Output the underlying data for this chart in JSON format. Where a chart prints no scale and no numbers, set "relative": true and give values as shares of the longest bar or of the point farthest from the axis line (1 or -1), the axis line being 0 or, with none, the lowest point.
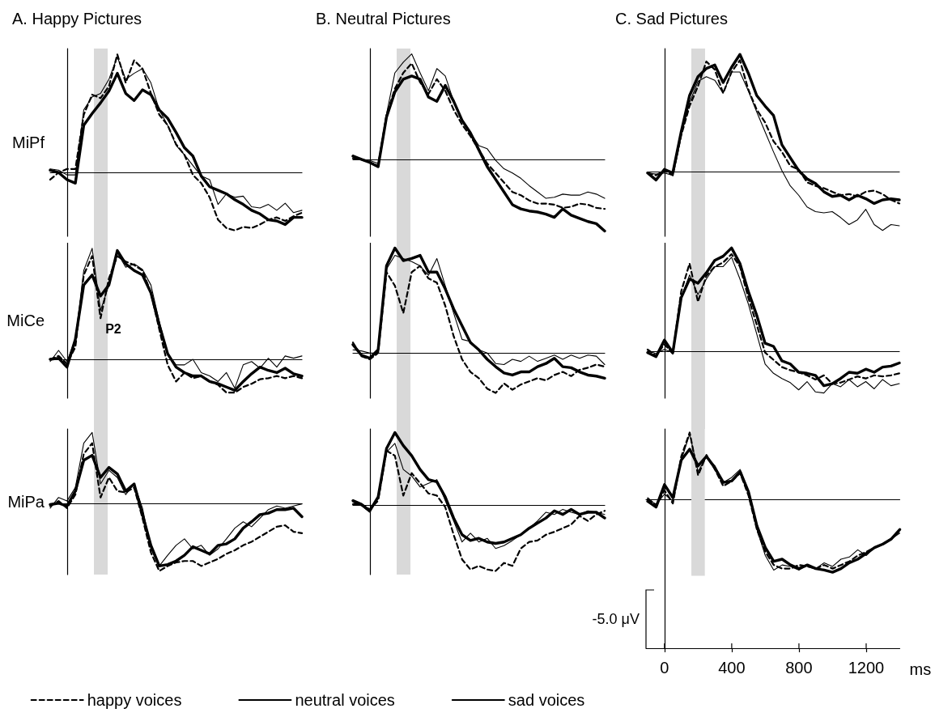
{
  "chart_data": [
    {
      "type": "line",
      "title": "A. Happy Pictures",
      "ylabel": "MiPf",
      "relative": true,
      "categories": [
        null,
        null,
        null,
        null,
        null,
        null,
        null,
        null,
        null,
        null,
        null,
        null,
        null,
        null,
        null,
        null,
        null,
        null,
        null,
        null,
        null,
        null,
        null,
        null,
        null,
        null,
        null,
        null,
        null,
        null,
        null
      ],
      "series": [
        {
          "color": "#000000",
          "line_style": "dashed",
          "values": [
            -0.06,
            0,
            0.03,
            0.03,
            0.49,
            0.66,
            0.63,
            0.73,
            1.0,
            0.76,
            0.95,
            0.88,
            0.67,
            0.49,
            0.4,
            0.24,
            0.15,
            -0.02,
            -0.09,
            -0.21,
            -0.4,
            -0.47,
            -0.49,
            -0.46,
            -0.47,
            -0.44,
            -0.4,
            -0.38,
            -0.41,
            -0.37,
            -0.34
          ]
        },
        {
          "color": "#000000",
          "line_style": "solid",
          "values": [
            0.03,
            0.02,
            -0.02,
            -0.02,
            0.53,
            0.64,
            0.67,
            0.79,
            0.98,
            0.79,
            0.84,
            0.88,
            0.76,
            0.53,
            0.4,
            0.23,
            0.15,
            0.06,
            -0.03,
            -0.06,
            -0.27,
            -0.18,
            -0.21,
            -0.2,
            -0.29,
            -0.3,
            -0.27,
            -0.32,
            -0.26,
            -0.34,
            -0.32
          ]
        },
        {
          "color": "#000000",
          "line_style": "solid",
          "values": [
            0.02,
            0,
            -0.06,
            -0.09,
            0.4,
            0.5,
            0.59,
            0.69,
            0.84,
            0.67,
            0.61,
            0.7,
            0.66,
            0.53,
            0.46,
            0.34,
            0.21,
            0.14,
            -0.03,
            -0.12,
            -0.15,
            -0.18,
            -0.23,
            -0.27,
            -0.32,
            -0.35,
            -0.4,
            -0.41,
            -0.44,
            -0.38,
            -0.38
          ]
        }
      ]
    },
    {
      "type": "line",
      "title": "B. Neutral Pictures",
      "relative": true,
      "categories": [
        null,
        null,
        null,
        null,
        null,
        null,
        null,
        null,
        null,
        null,
        null,
        null,
        null,
        null,
        null,
        null,
        null,
        null,
        null,
        null,
        null,
        null,
        null,
        null,
        null,
        null,
        null,
        null,
        null,
        null,
        null
      ],
      "series": [
        {
          "color": "#000000",
          "line_style": "dashed",
          "values": [
            0.01,
            0,
            -0.03,
            -0.06,
            0.42,
            0.67,
            0.82,
            0.91,
            0.73,
            0.62,
            0.76,
            0.65,
            0.47,
            0.33,
            0.22,
            0.09,
            -0.04,
            -0.13,
            -0.22,
            -0.31,
            -0.34,
            -0.39,
            -0.42,
            -0.42,
            -0.43,
            -0.46,
            -0.45,
            -0.42,
            -0.43,
            -0.46,
            -0.47
          ]
        },
        {
          "color": "#000000",
          "line_style": "solid",
          "values": [
            0.04,
            0,
            -0.01,
            -0.04,
            0.43,
            0.82,
            0.92,
            1.0,
            0.82,
            0.65,
            0.86,
            0.79,
            0.55,
            0.37,
            0.25,
            0.13,
            0.1,
            -0.01,
            -0.09,
            -0.13,
            -0.18,
            -0.25,
            -0.31,
            -0.37,
            -0.36,
            -0.33,
            -0.34,
            -0.34,
            -0.31,
            -0.33,
            -0.37
          ]
        },
        {
          "color": "#000000",
          "line_style": "solid",
          "values": [
            0.03,
            0,
            -0.03,
            -0.07,
            0.4,
            0.64,
            0.76,
            0.79,
            0.76,
            0.59,
            0.55,
            0.7,
            0.55,
            0.37,
            0.25,
            0.09,
            -0.07,
            -0.19,
            -0.31,
            -0.43,
            -0.47,
            -0.49,
            -0.5,
            -0.52,
            -0.55,
            -0.47,
            -0.53,
            -0.56,
            -0.59,
            -0.61,
            -0.68
          ]
        }
      ]
    },
    {
      "type": "line",
      "title": "C. Sad Pictures",
      "relative": true,
      "categories": [
        null,
        null,
        null,
        null,
        null,
        null,
        null,
        null,
        null,
        null,
        null,
        null,
        null,
        null,
        null,
        null,
        null,
        null,
        null,
        null,
        null,
        null,
        null,
        null,
        null,
        null,
        null,
        null,
        null,
        null,
        null
      ],
      "series": [
        {
          "color": "#000000",
          "line_style": "dashed",
          "values": [
            -0.01,
            -0.03,
            0.01,
            -0.03,
            0.31,
            0.56,
            0.73,
            0.94,
            0.87,
            0.67,
            0.85,
            0.95,
            0.7,
            0.53,
            0.42,
            0.26,
            0.17,
            0.05,
            0.02,
            -0.09,
            -0.12,
            -0.14,
            -0.17,
            -0.2,
            -0.19,
            -0.21,
            -0.17,
            -0.16,
            -0.19,
            -0.24,
            -0.27
          ]
        },
        {
          "color": "#000000",
          "line_style": "solid",
          "values": [
            -0.01,
            -0.02,
            -0.01,
            -0.03,
            0.31,
            0.59,
            0.77,
            0.81,
            0.78,
            0.67,
            0.85,
            0.85,
            0.69,
            0.51,
            0.34,
            0.17,
            0.01,
            -0.12,
            -0.2,
            -0.3,
            -0.34,
            -0.35,
            -0.34,
            -0.39,
            -0.45,
            -0.41,
            -0.32,
            -0.45,
            -0.5,
            -0.45,
            -0.46
          ]
        },
        {
          "color": "#000000",
          "line_style": "solid",
          "values": [
            -0.01,
            -0.07,
            0.02,
            -0.01,
            0.34,
            0.65,
            0.81,
            0.88,
            0.91,
            0.76,
            0.89,
            1.0,
            0.84,
            0.65,
            0.56,
            0.48,
            0.23,
            0.12,
            0.01,
            -0.06,
            -0.1,
            -0.17,
            -0.21,
            -0.2,
            -0.24,
            -0.2,
            -0.23,
            -0.27,
            -0.24,
            -0.23,
            -0.24
          ]
        }
      ]
    },
    {
      "type": "line",
      "ylabel": "MiCe",
      "relative": true,
      "categories": [
        null,
        null,
        null,
        null,
        null,
        null,
        null,
        null,
        null,
        null,
        null,
        null,
        null,
        null,
        null,
        null,
        null,
        null,
        null,
        null,
        null,
        null,
        null,
        null,
        null,
        null,
        null,
        null,
        null,
        null,
        null
      ],
      "annotations": [
        "P2"
      ],
      "series": [
        {
          "color": "#000000",
          "line_style": "dashed",
          "values": [
            0,
            0.03,
            -0.04,
            0.11,
            0.76,
            0.93,
            0.37,
            0.73,
            0.93,
            0.88,
            0.85,
            0.8,
            0.6,
            0.27,
            -0.05,
            -0.2,
            -0.12,
            -0.17,
            -0.15,
            -0.2,
            -0.23,
            -0.3,
            -0.3,
            -0.25,
            -0.22,
            -0.18,
            -0.17,
            -0.15,
            -0.17,
            -0.15,
            -0.17
          ]
        },
        {
          "color": "#000000",
          "line_style": "solid",
          "values": [
            -0.02,
            0.08,
            -0.02,
            0.18,
            0.8,
            1.0,
            0.44,
            0.67,
            0.96,
            0.83,
            0.86,
            0.81,
            0.67,
            0.34,
            0.05,
            -0.05,
            -0.05,
            0,
            -0.12,
            -0.15,
            -0.2,
            -0.12,
            -0.26,
            -0.05,
            -0.02,
            -0.08,
            0.01,
            -0.07,
            0.03,
            0.01,
            0.03
          ]
        },
        {
          "color": "#000000",
          "line_style": "solid",
          "values": [
            0,
            0.01,
            -0.07,
            0.18,
            0.67,
            0.76,
            0.57,
            0.67,
            0.98,
            0.86,
            0.8,
            0.76,
            0.6,
            0.31,
            0.05,
            -0.07,
            -0.12,
            -0.15,
            -0.15,
            -0.2,
            -0.22,
            -0.25,
            -0.28,
            -0.2,
            -0.13,
            -0.07,
            -0.1,
            -0.12,
            -0.08,
            -0.13,
            -0.15
          ]
        }
      ]
    },
    {
      "type": "line",
      "relative": true,
      "categories": [
        null,
        null,
        null,
        null,
        null,
        null,
        null,
        null,
        null,
        null,
        null,
        null,
        null,
        null,
        null,
        null,
        null,
        null,
        null,
        null,
        null,
        null,
        null,
        null,
        null,
        null,
        null,
        null,
        null,
        null,
        null
      ],
      "series": [
        {
          "color": "#000000",
          "line_style": "dashed",
          "values": [
            0.1,
            -0.03,
            -0.06,
            0,
            0.77,
            0.64,
            0.38,
            0.77,
            0.83,
            0.71,
            0.67,
            0.45,
            0.16,
            -0.06,
            -0.18,
            -0.24,
            -0.34,
            -0.38,
            -0.29,
            -0.35,
            -0.3,
            -0.27,
            -0.24,
            -0.26,
            -0.21,
            -0.18,
            -0.22,
            -0.16,
            -0.14,
            -0.11,
            -0.13
          ]
        },
        {
          "color": "#000000",
          "line_style": "solid",
          "values": [
            0.03,
            0.02,
            0,
            0,
            0.8,
            0.93,
            0.9,
            0.87,
            0.83,
            0.74,
            0.9,
            0.64,
            0.38,
            0.13,
            0.11,
            0.03,
            0,
            -0.1,
            -0.11,
            -0.06,
            -0.08,
            -0.03,
            -0.08,
            -0.05,
            -0.02,
            -0.06,
            -0.02,
            -0.05,
            -0.02,
            -0.03,
            -0.11
          ]
        },
        {
          "color": "#000000",
          "line_style": "solid",
          "values": [
            0.08,
            -0.02,
            -0.05,
            0.03,
            0.83,
            1.0,
            0.88,
            0.9,
            0.93,
            0.77,
            0.77,
            0.61,
            0.42,
            0.26,
            0.1,
            0.03,
            -0.06,
            -0.13,
            -0.19,
            -0.21,
            -0.18,
            -0.18,
            -0.13,
            -0.1,
            -0.05,
            -0.13,
            -0.14,
            -0.18,
            -0.21,
            -0.22,
            -0.24
          ]
        }
      ]
    },
    {
      "type": "line",
      "relative": true,
      "categories": [
        null,
        null,
        null,
        null,
        null,
        null,
        null,
        null,
        null,
        null,
        null,
        null,
        null,
        null,
        null,
        null,
        null,
        null,
        null,
        null,
        null,
        null,
        null,
        null,
        null,
        null,
        null,
        null,
        null,
        null,
        null
      ],
      "series": [
        {
          "color": "#000000",
          "line_style": "dashed",
          "values": [
            0.02,
            -0.04,
            0.07,
            -0.02,
            0.58,
            0.85,
            0.48,
            0.73,
            0.82,
            0.86,
            0.94,
            0.82,
            0.52,
            0.26,
            -0.01,
            -0.08,
            -0.15,
            -0.18,
            -0.2,
            -0.23,
            -0.27,
            -0.23,
            -0.31,
            -0.3,
            -0.27,
            -0.24,
            -0.26,
            -0.23,
            -0.24,
            -0.23,
            -0.21
          ]
        },
        {
          "color": "#000000",
          "line_style": "solid",
          "values": [
            0.01,
            -0.02,
            0.02,
            -0.01,
            0.52,
            0.74,
            0.55,
            0.7,
            0.82,
            0.82,
            0.91,
            0.7,
            0.46,
            0.17,
            -0.12,
            -0.21,
            -0.26,
            -0.3,
            -0.37,
            -0.29,
            -0.39,
            -0.4,
            -0.31,
            -0.34,
            -0.27,
            -0.34,
            -0.29,
            -0.36,
            -0.27,
            -0.33,
            -0.31
          ]
        },
        {
          "color": "#000000",
          "line_style": "solid",
          "values": [
            -0.01,
            -0.05,
            0.11,
            -0.01,
            0.52,
            0.7,
            0.66,
            0.76,
            0.88,
            0.92,
            1.0,
            0.85,
            0.58,
            0.35,
            0.08,
            0.05,
            -0.09,
            -0.12,
            -0.2,
            -0.21,
            -0.23,
            -0.33,
            -0.31,
            -0.26,
            -0.2,
            -0.21,
            -0.17,
            -0.2,
            -0.15,
            -0.14,
            -0.11
          ]
        }
      ]
    },
    {
      "type": "line",
      "ylabel": "MiPa",
      "relative": true,
      "legend": "bottom",
      "categories": [
        null,
        null,
        null,
        null,
        null,
        null,
        null,
        null,
        null,
        null,
        null,
        null,
        null,
        null,
        null,
        null,
        null,
        null,
        null,
        null,
        null,
        null,
        null,
        null,
        null,
        null,
        null,
        null,
        null,
        null,
        null
      ],
      "series": [
        {
          "name": "happy voices",
          "color": "#000000",
          "line_style": "dashed",
          "values": [
            -0.03,
            0.04,
            -0.06,
            0.13,
            0.7,
            0.85,
            0.09,
            0.37,
            0.18,
            0.16,
            0.23,
            -0.2,
            -0.68,
            -0.94,
            -0.87,
            -0.82,
            -0.8,
            -0.8,
            -0.87,
            -0.82,
            -0.77,
            -0.7,
            -0.65,
            -0.58,
            -0.53,
            -0.46,
            -0.39,
            -0.32,
            -0.3,
            -0.39,
            -0.41
          ]
        },
        {
          "name": "neutral voices",
          "color": "#000000",
          "line_style": "solid",
          "values": [
            -0.06,
            0.09,
            0.04,
            0.23,
            0.85,
            1.0,
            0.28,
            0.47,
            0.37,
            0.13,
            0.28,
            -0.06,
            -0.63,
            -0.87,
            -0.72,
            -0.58,
            -0.49,
            -0.63,
            -0.58,
            -0.72,
            -0.63,
            -0.49,
            -0.34,
            -0.25,
            -0.32,
            -0.2,
            -0.08,
            -0.03,
            -0.06,
            -0.03,
            0
          ]
        },
        {
          "name": "sad voices",
          "color": "#000000",
          "line_style": "solid",
          "values": [
            -0.01,
            0.01,
            -0.03,
            0.18,
            0.61,
            0.68,
            0.37,
            0.51,
            0.42,
            0.18,
            0.28,
            -0.15,
            -0.58,
            -0.87,
            -0.85,
            -0.8,
            -0.72,
            -0.6,
            -0.65,
            -0.7,
            -0.58,
            -0.56,
            -0.49,
            -0.34,
            -0.25,
            -0.15,
            -0.13,
            -0.08,
            -0.08,
            -0.06,
            -0.18
          ]
        }
      ]
    },
    {
      "type": "line",
      "relative": true,
      "categories": [
        null,
        null,
        null,
        null,
        null,
        null,
        null,
        null,
        null,
        null,
        null,
        null,
        null,
        null,
        null,
        null,
        null,
        null,
        null,
        null,
        null,
        null,
        null,
        null,
        null,
        null,
        null,
        null,
        null,
        null,
        null
      ],
      "series": [
        {
          "color": "#000000",
          "line_style": "dashed",
          "values": [
            0.01,
            0.01,
            -0.06,
            0.06,
            0.75,
            0.68,
            0.13,
            0.44,
            0.3,
            0.16,
            0.13,
            -0.03,
            -0.41,
            -0.75,
            -0.89,
            -0.84,
            -0.89,
            -0.91,
            -0.8,
            -0.84,
            -0.6,
            -0.51,
            -0.49,
            -0.41,
            -0.37,
            -0.32,
            -0.27,
            -0.15,
            -0.22,
            -0.13,
            -0.08
          ]
        },
        {
          "color": "#000000",
          "line_style": "solid",
          "values": [
            0.04,
            -0.01,
            -0.1,
            0.09,
            0.73,
            0.85,
            0.49,
            0.4,
            0.25,
            0.3,
            0.35,
            0.06,
            -0.22,
            -0.51,
            -0.39,
            -0.51,
            -0.46,
            -0.6,
            -0.56,
            -0.49,
            -0.41,
            -0.32,
            -0.22,
            -0.1,
            -0.13,
            -0.06,
            -0.1,
            -0.13,
            -0.08,
            -0.1,
            -0.13
          ]
        },
        {
          "color": "#000000",
          "line_style": "solid",
          "values": [
            0.06,
            0.01,
            -0.08,
            0.11,
            0.78,
            1.0,
            0.82,
            0.68,
            0.49,
            0.35,
            0.32,
            0.11,
            -0.18,
            -0.41,
            -0.49,
            -0.46,
            -0.51,
            -0.53,
            -0.51,
            -0.46,
            -0.41,
            -0.32,
            -0.25,
            -0.18,
            -0.08,
            -0.13,
            -0.06,
            -0.13,
            -0.1,
            -0.1,
            -0.18
          ]
        }
      ]
    },
    {
      "type": "line",
      "relative": true,
      "xlabel": "ms",
      "xlim": [
        -110,
        1400
      ],
      "xticks": [
        0,
        400,
        800,
        1200
      ],
      "x": [
        -100,
        -50,
        0,
        50,
        100,
        150,
        200,
        250,
        300,
        350,
        400,
        450,
        500,
        550,
        600,
        650,
        700,
        750,
        800,
        850,
        900,
        950,
        1000,
        1050,
        1100,
        1150,
        1200,
        1250,
        1300,
        1350,
        1400
      ],
      "bands": [
        {
          "axis": "x",
          "from": 160,
          "to": 240,
          "color": "#d9d9d9"
        }
      ],
      "annotations": [
        "-5.0 μV"
      ],
      "series": [
        {
          "color": "#000000",
          "line_style": "dashed",
          "values": [
            0.01,
            -0.07,
            0.13,
            -0.05,
            0.6,
            0.93,
            0.34,
            0.62,
            0.42,
            0.19,
            0.26,
            0.37,
            0.06,
            -0.41,
            -0.72,
            -0.9,
            -0.95,
            -0.95,
            -0.9,
            -0.92,
            -0.95,
            -0.9,
            -0.95,
            -0.9,
            -0.85,
            -0.77,
            -0.72,
            -0.66,
            -0.61,
            -0.54,
            -0.43
          ]
        },
        {
          "color": "#000000",
          "line_style": "solid",
          "values": [
            0.03,
            -0.07,
            0.08,
            -0.02,
            0.55,
            0.91,
            0.39,
            0.6,
            0.47,
            0.24,
            0.31,
            0.42,
            0.11,
            -0.41,
            -0.77,
            -0.97,
            -0.9,
            -0.92,
            -0.97,
            -0.9,
            -0.95,
            -0.87,
            -0.92,
            -0.82,
            -0.79,
            -0.69,
            -0.77,
            -0.66,
            -0.61,
            -0.54,
            -0.46
          ]
        },
        {
          "color": "#000000",
          "line_style": "solid",
          "values": [
            -0.02,
            -0.1,
            0.21,
            0.03,
            0.55,
            0.7,
            0.47,
            0.6,
            0.44,
            0.24,
            0.26,
            0.39,
            0.11,
            -0.36,
            -0.66,
            -0.85,
            -0.82,
            -0.9,
            -0.95,
            -0.9,
            -0.95,
            -0.97,
            -1.0,
            -0.95,
            -0.87,
            -0.82,
            -0.74,
            -0.66,
            -0.61,
            -0.54,
            -0.41
          ]
        }
      ]
    }
  ]
}
